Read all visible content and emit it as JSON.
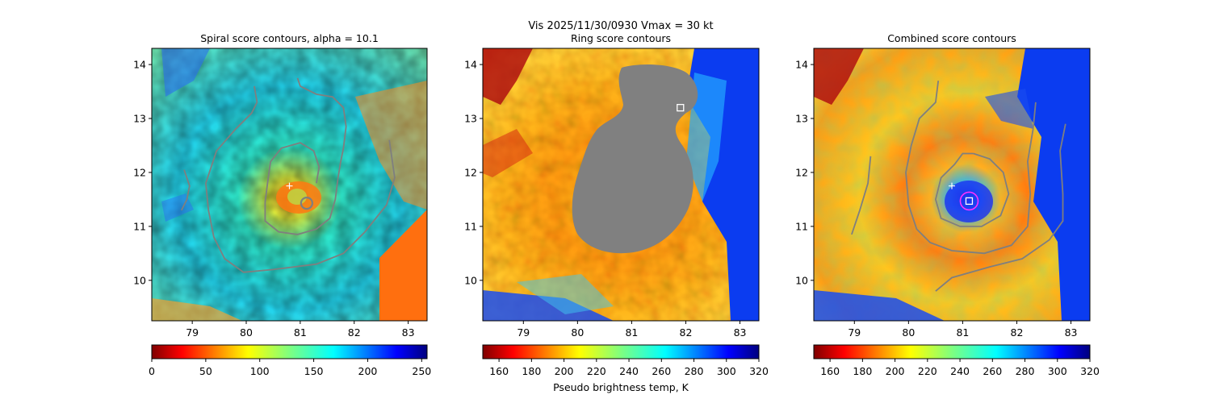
{
  "suptitle_line1": "Vis  2025/11/30/0930    Vmax = 30 kt",
  "cbar_label": "Pseudo brightness temp, K",
  "chart_data": [
    {
      "type": "heatmap",
      "title": "Spiral score contours, alpha = 10.1",
      "xlim": [
        78.25,
        83.35
      ],
      "ylim": [
        9.25,
        14.3
      ],
      "xticks": [
        "79",
        "80",
        "81",
        "82",
        "83"
      ],
      "yticks": [
        "10",
        "11",
        "12",
        "13",
        "14"
      ],
      "colorbar": {
        "min": 0,
        "max": 255,
        "ticks": [
          "0",
          "50",
          "100",
          "150",
          "200",
          "250"
        ]
      },
      "markers": [
        {
          "kind": "plus",
          "x": 80.8,
          "y": 11.75
        },
        {
          "kind": "circle",
          "x": 81.12,
          "y": 11.43
        }
      ],
      "contours": [
        [
          [
            78.85,
            12.05
          ],
          [
            78.95,
            11.75
          ],
          [
            78.9,
            11.5
          ],
          [
            78.8,
            11.3
          ]
        ],
        [
          [
            80.15,
            13.6
          ],
          [
            80.2,
            13.3
          ],
          [
            80.1,
            13.1
          ],
          [
            79.8,
            12.8
          ],
          [
            79.45,
            12.4
          ],
          [
            79.25,
            11.8
          ],
          [
            79.3,
            11.3
          ],
          [
            79.4,
            10.8
          ],
          [
            79.6,
            10.4
          ],
          [
            79.95,
            10.15
          ],
          [
            80.5,
            10.2
          ],
          [
            81.3,
            10.3
          ],
          [
            81.8,
            10.5
          ],
          [
            82.2,
            10.9
          ],
          [
            82.6,
            11.4
          ],
          [
            82.75,
            11.9
          ],
          [
            82.65,
            12.6
          ]
        ],
        [
          [
            80.95,
            13.75
          ],
          [
            81.0,
            13.6
          ],
          [
            81.3,
            13.45
          ],
          [
            81.6,
            13.4
          ],
          [
            81.8,
            13.2
          ],
          [
            81.85,
            12.85
          ],
          [
            81.8,
            12.45
          ],
          [
            81.75,
            12.2
          ],
          [
            81.7,
            11.9
          ],
          [
            81.65,
            11.5
          ],
          [
            81.55,
            11.15
          ],
          [
            81.3,
            10.95
          ],
          [
            80.95,
            10.85
          ],
          [
            80.6,
            10.9
          ],
          [
            80.35,
            11.1
          ],
          [
            80.35,
            11.45
          ],
          [
            80.4,
            11.85
          ],
          [
            80.45,
            12.2
          ],
          [
            80.65,
            12.45
          ],
          [
            81.0,
            12.55
          ],
          [
            81.25,
            12.4
          ],
          [
            81.35,
            12.1
          ],
          [
            81.3,
            11.8
          ]
        ]
      ]
    },
    {
      "type": "heatmap",
      "title": "Ring score contours",
      "xlim": [
        78.25,
        83.35
      ],
      "ylim": [
        9.25,
        14.3
      ],
      "xticks": [
        "79",
        "80",
        "81",
        "82",
        "83"
      ],
      "yticks": [
        "10",
        "11",
        "12",
        "13",
        "14"
      ],
      "colorbar": {
        "min": 150,
        "max": 320,
        "ticks": [
          "160",
          "180",
          "200",
          "220",
          "240",
          "260",
          "280",
          "300",
          "320"
        ]
      },
      "mask_region": "gray ring-score mask centered near 81, 12",
      "markers": [
        {
          "kind": "square",
          "x": 81.9,
          "y": 13.2
        }
      ],
      "contours": []
    },
    {
      "type": "heatmap",
      "title": "Combined score contours",
      "xlim": [
        78.25,
        83.35
      ],
      "ylim": [
        9.25,
        14.3
      ],
      "xticks": [
        "79",
        "80",
        "81",
        "82",
        "83"
      ],
      "yticks": [
        "10",
        "11",
        "12",
        "13",
        "14"
      ],
      "colorbar": {
        "min": 150,
        "max": 320,
        "ticks": [
          "160",
          "180",
          "200",
          "220",
          "240",
          "260",
          "280",
          "300",
          "320"
        ]
      },
      "markers": [
        {
          "kind": "plus",
          "x": 80.8,
          "y": 11.75
        },
        {
          "kind": "circle",
          "x": 81.12,
          "y": 11.47
        },
        {
          "kind": "square",
          "x": 81.12,
          "y": 11.47
        }
      ],
      "contours": [
        [
          [
            79.3,
            12.3
          ],
          [
            79.25,
            11.8
          ],
          [
            79.1,
            11.3
          ],
          [
            78.95,
            10.85
          ]
        ],
        [
          [
            80.55,
            13.7
          ],
          [
            80.5,
            13.3
          ],
          [
            80.2,
            13.0
          ],
          [
            80.05,
            12.5
          ],
          [
            79.95,
            12.0
          ],
          [
            80.0,
            11.4
          ],
          [
            80.15,
            10.95
          ],
          [
            80.4,
            10.7
          ],
          [
            80.8,
            10.55
          ],
          [
            81.4,
            10.5
          ],
          [
            81.9,
            10.65
          ],
          [
            82.2,
            11.0
          ],
          [
            82.25,
            11.6
          ],
          [
            82.2,
            12.2
          ],
          [
            82.3,
            12.8
          ],
          [
            82.35,
            13.3
          ]
        ],
        [
          [
            80.5,
            9.8
          ],
          [
            80.8,
            10.05
          ],
          [
            81.5,
            10.25
          ],
          [
            82.1,
            10.4
          ],
          [
            82.6,
            10.75
          ],
          [
            82.85,
            11.1
          ],
          [
            82.85,
            11.6
          ],
          [
            82.8,
            12.4
          ],
          [
            82.9,
            12.9
          ]
        ],
        [
          [
            81.2,
            12.35
          ],
          [
            81.5,
            12.25
          ],
          [
            81.75,
            12.0
          ],
          [
            81.85,
            11.6
          ],
          [
            81.7,
            11.2
          ],
          [
            81.35,
            11.0
          ],
          [
            80.95,
            11.0
          ],
          [
            80.6,
            11.15
          ],
          [
            80.5,
            11.5
          ],
          [
            80.6,
            11.9
          ],
          [
            80.85,
            12.15
          ],
          [
            81.0,
            12.35
          ],
          [
            81.2,
            12.35
          ]
        ]
      ]
    }
  ]
}
